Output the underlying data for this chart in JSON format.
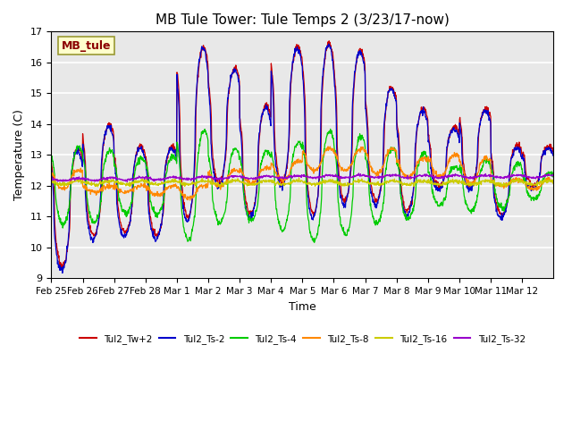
{
  "title": "MB Tule Tower: Tule Temps 2 (3/23/17-now)",
  "ylabel": "Temperature (C)",
  "xlabel": "Time",
  "ylim": [
    9.0,
    17.0
  ],
  "yticks": [
    9.0,
    10.0,
    11.0,
    12.0,
    13.0,
    14.0,
    15.0,
    16.0,
    17.0
  ],
  "bg_color": "#e8e8e8",
  "fig_color": "#ffffff",
  "legend_label": "MB_tule",
  "series_labels": [
    "Tul2_Tw+2",
    "Tul2_Ts-2",
    "Tul2_Ts-4",
    "Tul2_Ts-8",
    "Tul2_Ts-16",
    "Tul2_Ts-32"
  ],
  "series_colors": [
    "#cc0000",
    "#0000cc",
    "#00cc00",
    "#ff8800",
    "#cccc00",
    "#9900cc"
  ],
  "n_days": 16,
  "time_labels": [
    "Feb 25",
    "Feb 26",
    "Feb 27",
    "Feb 28",
    "Mar 1",
    "Mar 2",
    "Mar 3",
    "Mar 4",
    "Mar 5",
    "Mar 6",
    "Mar 7",
    "Mar 8",
    "Mar 9",
    "Mar 10",
    "Mar 11",
    "Mar 12"
  ]
}
